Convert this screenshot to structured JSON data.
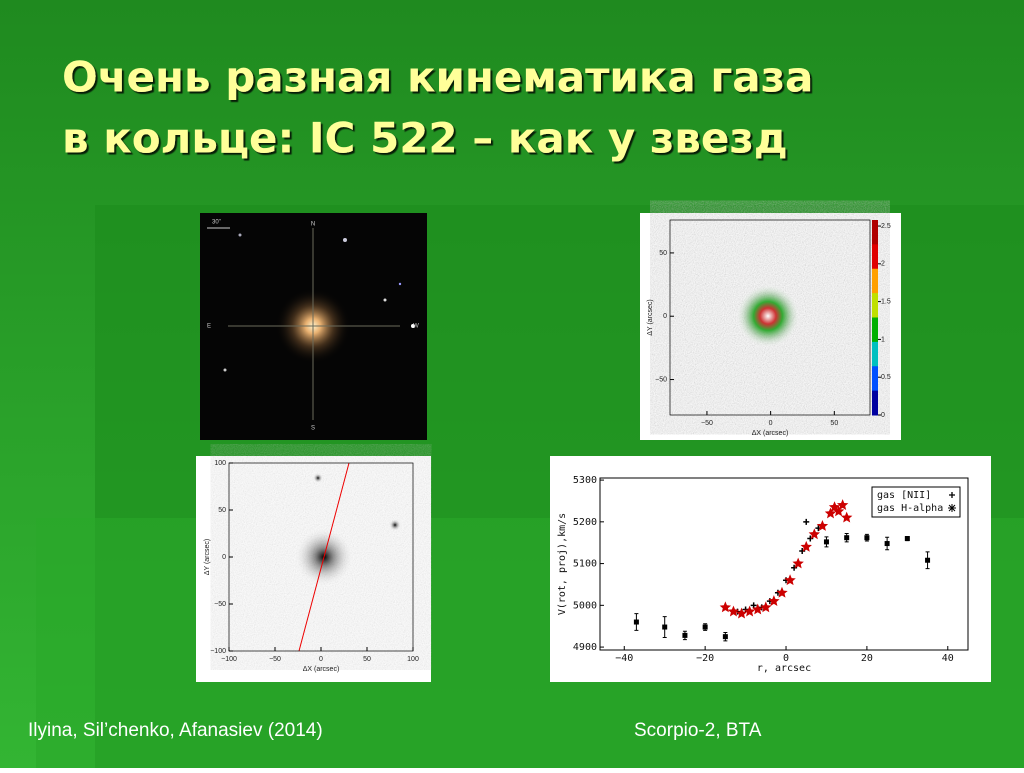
{
  "title": [
    "Очень разная кинематика газа",
    "в кольце: IC 522 – как у звезд"
  ],
  "captions": {
    "left": "Ilyina, Sil’chenko, Afanasiev (2014)",
    "right": "Scorpio-2, BTA"
  },
  "sky_image": {
    "scale_label": "30\"",
    "north": "N",
    "south": "S",
    "east": "E",
    "west": "W"
  },
  "velocity_map": {
    "xlim": [
      -79,
      78
    ],
    "ylim": [
      -78,
      76
    ],
    "xticks": [
      {
        "value": -50,
        "label": "−50"
      },
      0,
      50
    ],
    "yticks": [
      50,
      0,
      {
        "value": -50,
        "label": "−50"
      }
    ],
    "xlabel": "ΔX (arcsec)",
    "ylabel": "ΔY (arcsec)",
    "colorbar_lim": [
      0,
      2.58
    ],
    "colorbar_ticks": [
      0,
      0.5,
      1,
      1.5,
      2,
      2.5
    ]
  },
  "gas_map": {
    "xlim": [
      -100,
      100
    ],
    "ylim": [
      -100,
      100
    ],
    "xticks": [
      {
        "value": -100,
        "label": "−100"
      },
      {
        "value": -50,
        "label": "−50"
      },
      0,
      50,
      100
    ],
    "yticks": [
      100,
      50,
      0,
      {
        "value": -50,
        "label": "−50"
      },
      {
        "value": -100,
        "label": "−100"
      }
    ],
    "xlabel": "ΔX (arcsec)",
    "ylabel": "ΔY (arcsec)"
  },
  "chart_data": {
    "type": "scatter",
    "xlabel": "r, arcsec",
    "ylabel": "V(rot, proj),km/s",
    "xlim": [
      -46,
      45
    ],
    "ylim": [
      4893,
      5305
    ],
    "xticks": [
      {
        "value": -40,
        "label": "−40"
      },
      {
        "value": -20,
        "label": "−20"
      },
      0,
      20,
      40
    ],
    "yticks": [
      4900,
      5000,
      5100,
      5200,
      5300
    ],
    "series": [
      {
        "name": "gas [NII]",
        "color": "#000000",
        "marker": "plus",
        "x": [
          -12,
          -10,
          -8,
          -6,
          -4,
          -2,
          0,
          2,
          4,
          5,
          6,
          8
        ],
        "values": [
          4985,
          4990,
          5000,
          4995,
          5010,
          5030,
          5060,
          5090,
          5130,
          5200,
          5160,
          5185
        ]
      },
      {
        "name": "gas H-alpha",
        "color": "#000000",
        "marker": "square",
        "x": [
          -37,
          -30,
          -25,
          -20,
          -15,
          10,
          15,
          20,
          25,
          30,
          35
        ],
        "values": [
          4960,
          4948,
          4928,
          4948,
          4925,
          5152,
          5162,
          5162,
          5148,
          5160,
          5108
        ],
        "errors": [
          20,
          25,
          10,
          8,
          10,
          12,
          10,
          8,
          15,
          5,
          20
        ]
      },
      {
        "color": "#cc0000",
        "marker": "star",
        "x": [
          -15,
          -13,
          -11,
          -9,
          -7,
          -5,
          -3,
          -1,
          1,
          3,
          5,
          7,
          9,
          11,
          12,
          13,
          14,
          15
        ],
        "values": [
          4995,
          4985,
          4980,
          4985,
          4990,
          4995,
          5010,
          5030,
          5060,
          5100,
          5140,
          5170,
          5190,
          5220,
          5235,
          5225,
          5240,
          5210
        ]
      }
    ]
  }
}
